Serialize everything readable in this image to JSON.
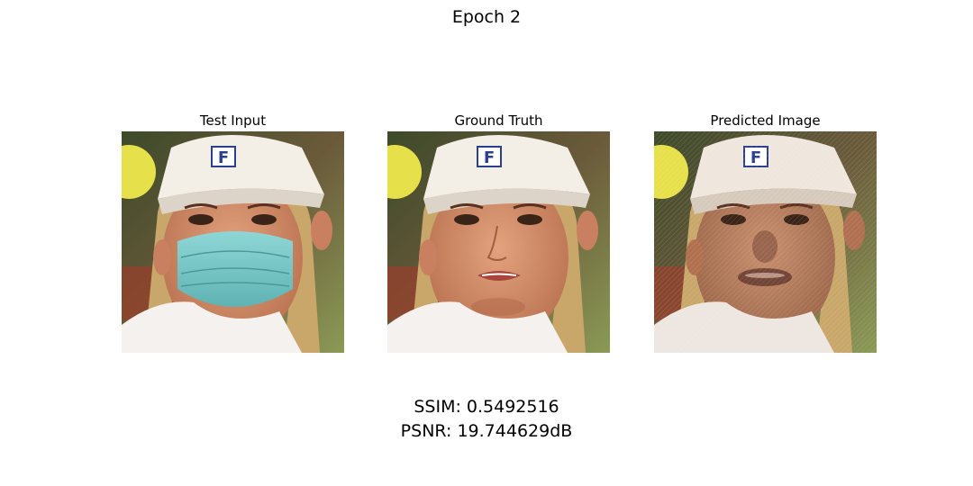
{
  "figure": {
    "suptitle": "Epoch 2"
  },
  "panels": [
    {
      "title": "Test Input"
    },
    {
      "title": "Ground Truth"
    },
    {
      "title": "Predicted Image"
    }
  ],
  "cap_logo_text": "F",
  "metrics": {
    "ssim": "SSIM: 0.5492516",
    "psnr": "PSNR: 19.744629dB"
  }
}
